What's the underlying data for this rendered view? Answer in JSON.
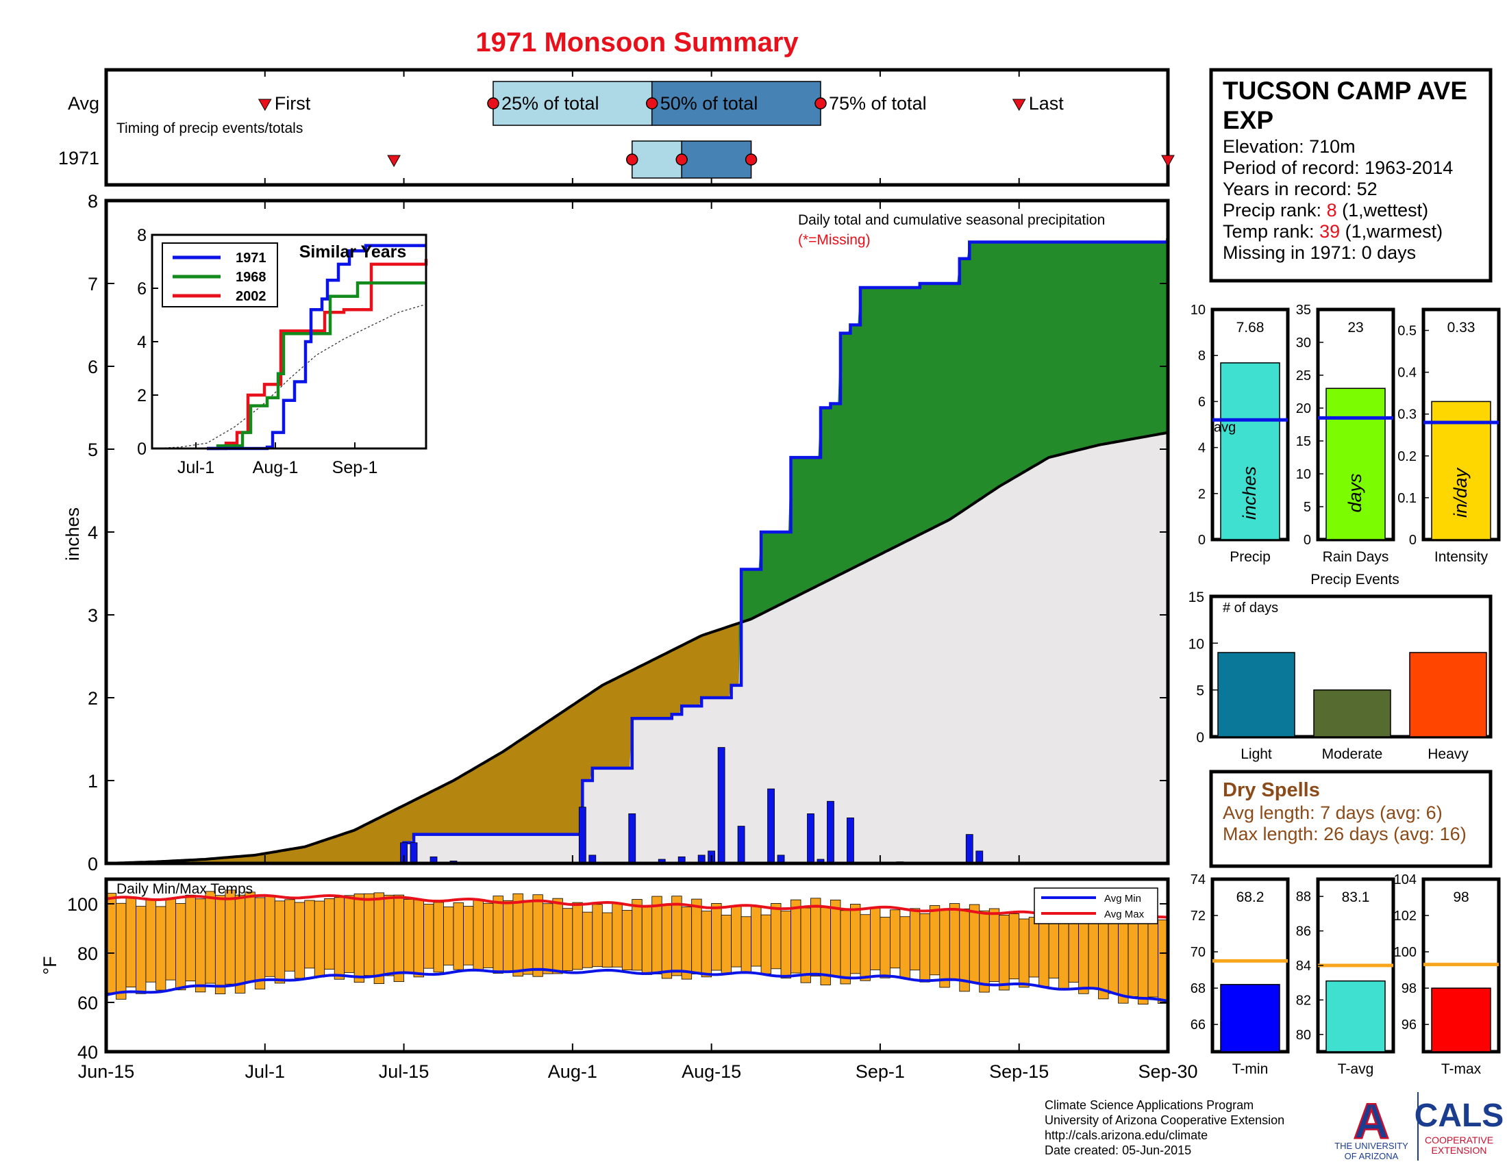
{
  "title": "1971 Monsoon Summary",
  "colors": {
    "title": "#e8101a",
    "green": "#238b2a",
    "brown": "#b5860f",
    "gray": "#e9e7e8",
    "blue": "#0a14e6",
    "orange": "#f7a51c",
    "dryspell": "#8b4a18"
  },
  "timing": {
    "avg_label": "Avg",
    "year_label": "1971",
    "subtitle": "Timing of precip events/totals",
    "first_label": "First",
    "last_label": "Last",
    "q25_label": "25% of total",
    "q50_label": "50% of total",
    "q75_label": "75% of total",
    "avg_days": {
      "first": 16,
      "q25": 39,
      "q50": 55,
      "q75": 72,
      "last": 92
    },
    "year_days": {
      "first": 29,
      "q25": 53,
      "q50": 58,
      "q75": 65,
      "last": 107
    }
  },
  "station": {
    "name_line1": "TUCSON CAMP AVE",
    "name_line2": "EXP",
    "elevation": "Elevation: 710m",
    "period": "Period of record: 1963-2014",
    "years": "Years in record: 52",
    "precip_rank_pre": "Precip rank: ",
    "precip_rank_val": "8",
    "precip_rank_post": " (1,wettest)",
    "temp_rank_pre": "Temp rank: ",
    "temp_rank_val": "39",
    "temp_rank_post": " (1,warmest)",
    "missing": "Missing in 1971: 0 days"
  },
  "main_chart": {
    "ylabel": "inches",
    "note1": "Daily total and cumulative seasonal precipitation",
    "note2": "(*=Missing)",
    "y_ticks": [
      "0",
      "1",
      "2",
      "3",
      "4",
      "5",
      "6",
      "7",
      "8"
    ],
    "x_ticks": [
      {
        "label": "Jun-15",
        "day": 0
      },
      {
        "label": "Jul-1",
        "day": 16
      },
      {
        "label": "Jul-15",
        "day": 30
      },
      {
        "label": "Aug-1",
        "day": 47
      },
      {
        "label": "Aug-15",
        "day": 61
      },
      {
        "label": "Sep-1",
        "day": 78
      },
      {
        "label": "Sep-15",
        "day": 92
      },
      {
        "label": "Sep-30",
        "day": 107
      }
    ]
  },
  "inset": {
    "title": "Similar Years",
    "y_ticks": [
      "0",
      "2",
      "4",
      "6",
      "8"
    ],
    "x_ticks": [
      "Jul-1",
      "Aug-1",
      "Sep-1"
    ],
    "legend": [
      "1971",
      "1968",
      "2002"
    ]
  },
  "temp_chart": {
    "title": "Daily Min/Max Temps",
    "ylabel": "°F",
    "y_ticks": [
      "40",
      "60",
      "80",
      "100"
    ],
    "legend_min": "Avg Min",
    "legend_max": "Avg Max"
  },
  "summary_bars": [
    {
      "label": "Precip",
      "value_text": "7.68",
      "unit": "inches",
      "value": 7.68,
      "avg": 5.2,
      "max": 10,
      "ticks": [
        "0",
        "2",
        "4",
        "6",
        "8",
        "10"
      ],
      "color": "#40e0d0",
      "avg_label": "avg"
    },
    {
      "label": "Rain Days",
      "value_text": "23",
      "unit": "days",
      "value": 23,
      "avg": 18.5,
      "max": 35,
      "ticks": [
        "0",
        "5",
        "10",
        "15",
        "20",
        "25",
        "30",
        "35"
      ],
      "color": "#7cfc00"
    },
    {
      "label": "Intensity",
      "value_text": "0.33",
      "unit": "in/day",
      "value": 0.33,
      "avg": 0.28,
      "max": 0.55,
      "ticks": [
        "0",
        "0.1",
        "0.2",
        "0.3",
        "0.4",
        "0.5"
      ],
      "color": "#ffd700"
    }
  ],
  "events": {
    "title": "Precip Events",
    "ylabel": "# of days",
    "y_ticks": [
      "0",
      "5",
      "10",
      "15"
    ],
    "bars": [
      {
        "label": "Light",
        "value": 9,
        "color": "#0a7898"
      },
      {
        "label": "Moderate",
        "value": 5,
        "color": "#556b2f"
      },
      {
        "label": "Heavy",
        "value": 9,
        "color": "#ff4500"
      }
    ]
  },
  "dry_spells": {
    "title": "Dry Spells",
    "avg": "Avg length: 7 days (avg: 6)",
    "max": "Max length: 26 days (avg: 16)"
  },
  "temp_bars": [
    {
      "label": "T-min",
      "value_text": "68.2",
      "value": 68.2,
      "avg": 69.5,
      "min": 64.5,
      "max": 74,
      "ticks": [
        "66",
        "68",
        "70",
        "72",
        "74"
      ],
      "color": "#0000ff"
    },
    {
      "label": "T-avg",
      "value_text": "83.1",
      "value": 83.1,
      "avg": 84,
      "min": 79,
      "max": 89,
      "ticks": [
        "80",
        "82",
        "84",
        "86",
        "88"
      ],
      "color": "#40e0d0"
    },
    {
      "label": "T-max",
      "value_text": "98",
      "value": 98,
      "avg": 99.3,
      "min": 94.5,
      "max": 104,
      "ticks": [
        "96",
        "98",
        "100",
        "102",
        "104"
      ],
      "color": "#ff0000"
    }
  ],
  "footer": {
    "line1": "Climate Science Applications Program",
    "line2": "University of Arizona Cooperative Extension",
    "line3": "http://cals.arizona.edu/climate",
    "line4": " Date created: 05-Jun-2015",
    "ua_logo": "A",
    "ua_line1": "THE UNIVERSITY",
    "ua_line2": "OF ARIZONA",
    "cals": "CALS",
    "cals_line1": "COOPERATIVE",
    "cals_line2": "EXTENSION"
  },
  "chart_data": {
    "type": "area",
    "title": "1971 Monsoon Summary",
    "ylabel": "inches",
    "ylim": [
      0,
      8
    ],
    "x_unit": "day since Jun-15",
    "cumulative_1971": [
      [
        0,
        0
      ],
      [
        29,
        0
      ],
      [
        30,
        0.25
      ],
      [
        31,
        0.35
      ],
      [
        47,
        0.35
      ],
      [
        48,
        1.0
      ],
      [
        49,
        1.15
      ],
      [
        52,
        1.15
      ],
      [
        53,
        1.75
      ],
      [
        57,
        1.8
      ],
      [
        58,
        1.9
      ],
      [
        60,
        2.0
      ],
      [
        63,
        2.15
      ],
      [
        64,
        3.55
      ],
      [
        65,
        3.55
      ],
      [
        66,
        4.0
      ],
      [
        68,
        4.0
      ],
      [
        69,
        4.9
      ],
      [
        71,
        4.9
      ],
      [
        72,
        5.5
      ],
      [
        73,
        5.55
      ],
      [
        74,
        6.4
      ],
      [
        75,
        6.5
      ],
      [
        76,
        6.95
      ],
      [
        81,
        6.95
      ],
      [
        82,
        7.0
      ],
      [
        85,
        7.0
      ],
      [
        86,
        7.3
      ],
      [
        87,
        7.5
      ],
      [
        106,
        7.5
      ],
      [
        107,
        7.68
      ]
    ],
    "cumulative_avg": [
      [
        0,
        0
      ],
      [
        5,
        0.02
      ],
      [
        10,
        0.05
      ],
      [
        15,
        0.1
      ],
      [
        20,
        0.2
      ],
      [
        25,
        0.4
      ],
      [
        30,
        0.7
      ],
      [
        35,
        1.0
      ],
      [
        40,
        1.35
      ],
      [
        45,
        1.75
      ],
      [
        50,
        2.15
      ],
      [
        55,
        2.45
      ],
      [
        60,
        2.75
      ],
      [
        65,
        2.95
      ],
      [
        70,
        3.25
      ],
      [
        75,
        3.55
      ],
      [
        80,
        3.85
      ],
      [
        85,
        4.15
      ],
      [
        90,
        4.55
      ],
      [
        95,
        4.9
      ],
      [
        100,
        5.05
      ],
      [
        107,
        5.2
      ]
    ],
    "daily_1971": [
      [
        30,
        0.25
      ],
      [
        31,
        0.25
      ],
      [
        33,
        0.08
      ],
      [
        35,
        0.03
      ],
      [
        48,
        0.68
      ],
      [
        49,
        0.1
      ],
      [
        53,
        0.6
      ],
      [
        56,
        0.05
      ],
      [
        58,
        0.08
      ],
      [
        60,
        0.1
      ],
      [
        61,
        0.15
      ],
      [
        62,
        1.4
      ],
      [
        64,
        0.45
      ],
      [
        67,
        0.9
      ],
      [
        68,
        0.1
      ],
      [
        71,
        0.6
      ],
      [
        72,
        0.05
      ],
      [
        73,
        0.75
      ],
      [
        75,
        0.55
      ],
      [
        80,
        0.02
      ],
      [
        87,
        0.35
      ],
      [
        88,
        0.15
      ]
    ],
    "temp_avg_max": [
      [
        0,
        102
      ],
      [
        20,
        103
      ],
      [
        40,
        101
      ],
      [
        60,
        99
      ],
      [
        80,
        98
      ],
      [
        100,
        95
      ],
      [
        107,
        94
      ]
    ],
    "temp_avg_min": [
      [
        0,
        63
      ],
      [
        20,
        70
      ],
      [
        40,
        73
      ],
      [
        60,
        72
      ],
      [
        80,
        70
      ],
      [
        100,
        65
      ],
      [
        107,
        60
      ]
    ]
  }
}
